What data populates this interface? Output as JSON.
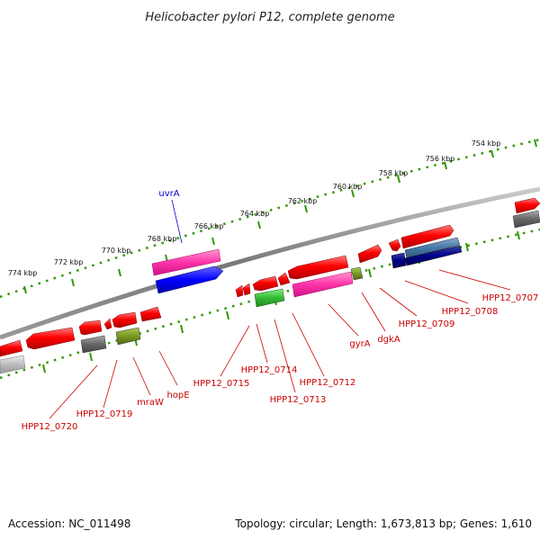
{
  "title": "Helicobacter pylori P12, complete genome",
  "footer": {
    "accession": "Accession: NC_011498",
    "summary": "Topology: circular; Length: 1,673,813 bp; Genes: 1,610"
  },
  "scale_labels": [
    "754 kbp",
    "756 kbp",
    "758 kbp",
    "760 kbp",
    "762 kbp",
    "764 kbp",
    "766 kbp",
    "768 kbp",
    "770 kbp",
    "772 kbp",
    "774 kbp"
  ],
  "gene_labels": {
    "uvrA": "uvrA",
    "hpp0707": "HPP12_0707",
    "hpp0708": "HPP12_0708",
    "hpp0709": "HPP12_0709",
    "dgkA": "dgkA",
    "gyrA": "gyrA",
    "hpp0712": "HPP12_0712",
    "hpp0713": "HPP12_0713",
    "hpp0714": "HPP12_0714",
    "hpp0715": "HPP12_0715",
    "hopE": "hopE",
    "mraW": "mraW",
    "hpp0719": "HPP12_0719",
    "hpp0720": "HPP12_0720"
  },
  "colors": {
    "gene_red": "#ff0000",
    "label_red": "#cc0000",
    "label_blue": "#0000cc",
    "tick_green": "#339900",
    "backbone_gray": "#777777",
    "pink": "#ff33aa",
    "blue": "#0000ff",
    "navy": "#000088",
    "steel_blue": "#4477aa",
    "green": "#33bb33",
    "olive": "#779922",
    "gray": "#666666",
    "light_gray": "#bbbbbb"
  }
}
